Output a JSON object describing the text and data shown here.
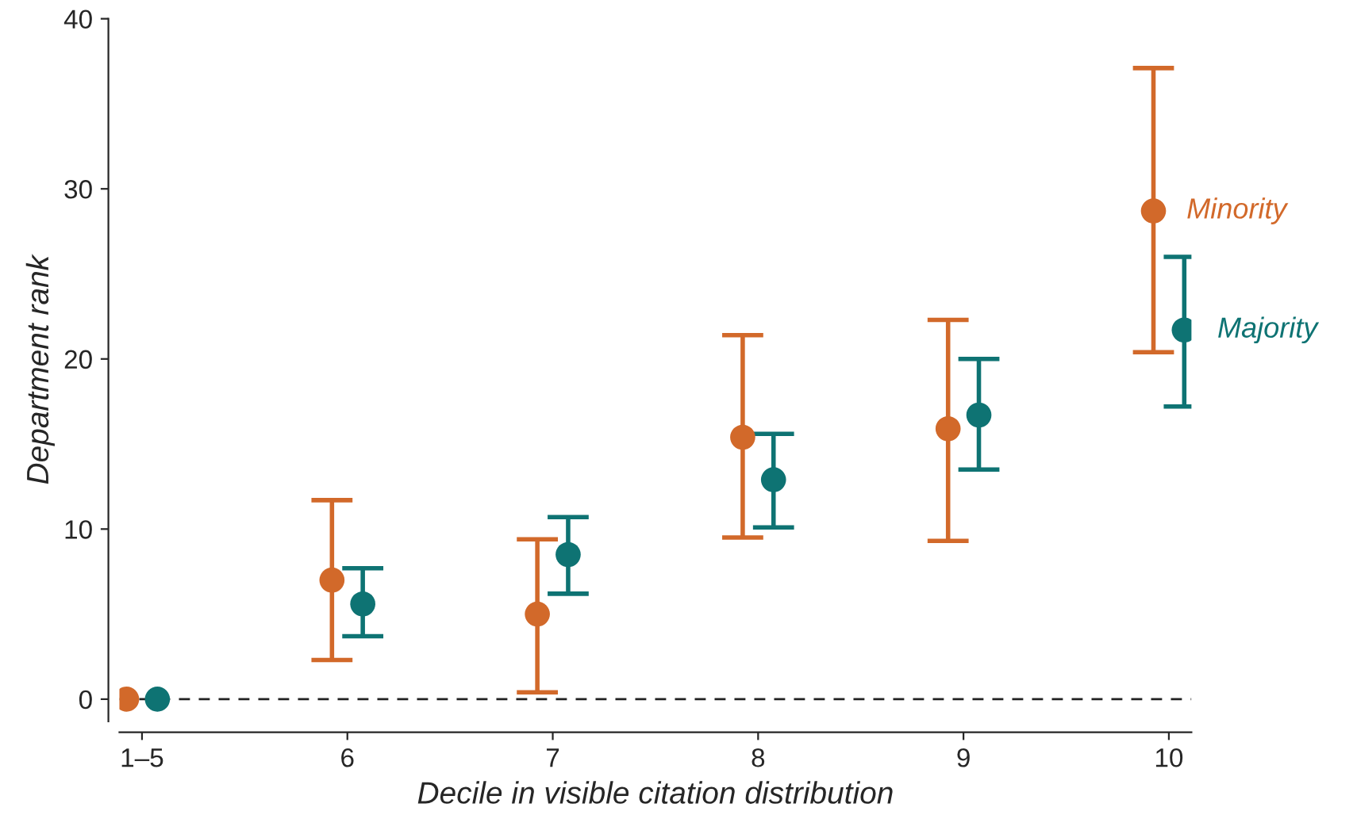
{
  "chart_data": {
    "type": "scatter",
    "xlabel": "Decile in visible citation distribution",
    "ylabel": "Department rank",
    "categories": [
      "1–5",
      "6",
      "7",
      "8",
      "9",
      "10"
    ],
    "series": [
      {
        "name": "Minority",
        "color": "#d2692a",
        "values": [
          0,
          7.0,
          5.0,
          15.4,
          15.9,
          28.7
        ],
        "errors": [
          null,
          [
            2.3,
            11.7
          ],
          [
            0.4,
            9.4
          ],
          [
            9.5,
            21.4
          ],
          [
            9.3,
            22.3
          ],
          [
            20.4,
            37.1
          ]
        ]
      },
      {
        "name": "Majority",
        "color": "#0e7373",
        "values": [
          0,
          5.6,
          8.5,
          12.9,
          16.7,
          21.7
        ],
        "errors": [
          null,
          [
            3.7,
            7.7
          ],
          [
            6.2,
            10.7
          ],
          [
            10.1,
            15.6
          ],
          [
            13.5,
            20.0
          ],
          [
            17.2,
            26.0
          ]
        ]
      }
    ],
    "ylim": [
      -1.3,
      40
    ],
    "yticks": [
      0,
      10,
      20,
      30,
      40
    ],
    "ref_lines": [
      {
        "axis": "y",
        "value": 0,
        "color": "#222222",
        "line_style": "dashed"
      }
    ],
    "marker": "circle",
    "grid": false,
    "legend": false
  }
}
